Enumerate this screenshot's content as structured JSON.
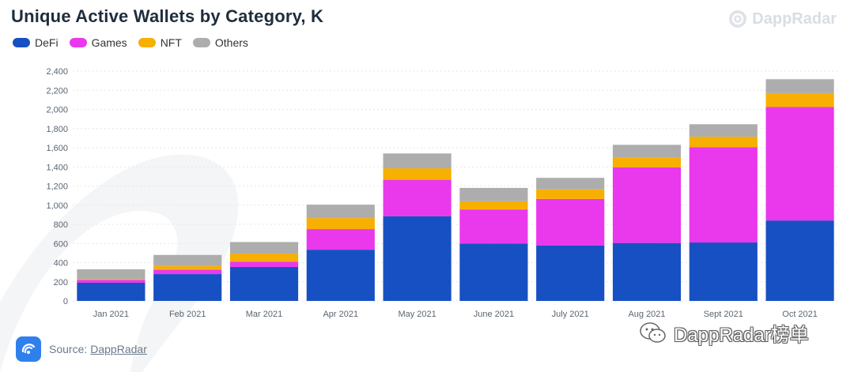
{
  "title": "Unique Active Wallets by Category, K",
  "brand": {
    "name": "DappRadar",
    "icon": "dappradar-logo-icon"
  },
  "source": {
    "prefix": "Source:",
    "link": "DappRadar",
    "icon": "dappradar-logo-icon"
  },
  "watermark": {
    "text": "DappRadar榜单",
    "icon": "wechat-icon"
  },
  "colors": {
    "DeFi": "#1750c3",
    "Games": "#ea38ec",
    "NFT": "#f7af00",
    "Others": "#adadad",
    "grid": "#e3e6ea",
    "axis_text": "#5a6572"
  },
  "chart_data": {
    "type": "bar",
    "stacked": true,
    "title": "Unique Active Wallets by Category, K",
    "xlabel": "",
    "ylabel": "",
    "ylim": [
      0,
      2400
    ],
    "yticks": [
      0,
      200,
      400,
      600,
      800,
      "1,000",
      "1,200",
      "1,400",
      "1,600",
      "1,800",
      "2,000",
      "2,200",
      "2,400"
    ],
    "ytick_values": [
      0,
      200,
      400,
      600,
      800,
      1000,
      1200,
      1400,
      1600,
      1800,
      2000,
      2200,
      2400
    ],
    "grid": true,
    "legend_position": "top-left",
    "categories": [
      "Jan 2021",
      "Feb 2021",
      "Mar 2021",
      "Apr 2021",
      "May 2021",
      "June 2021",
      "July 2021",
      "Aug 2021",
      "Sept 2021",
      "Oct 2021"
    ],
    "series": [
      {
        "name": "DeFi",
        "values": [
          190,
          280,
          355,
          535,
          885,
          600,
          580,
          605,
          610,
          840
        ]
      },
      {
        "name": "Games",
        "values": [
          30,
          45,
          55,
          215,
          380,
          355,
          485,
          790,
          995,
          1185
        ]
      },
      {
        "name": "NFT",
        "values": [
          10,
          40,
          85,
          115,
          120,
          85,
          100,
          105,
          110,
          145
        ]
      },
      {
        "name": "Others",
        "values": [
          100,
          115,
          120,
          140,
          155,
          140,
          120,
          130,
          130,
          145
        ]
      }
    ]
  }
}
